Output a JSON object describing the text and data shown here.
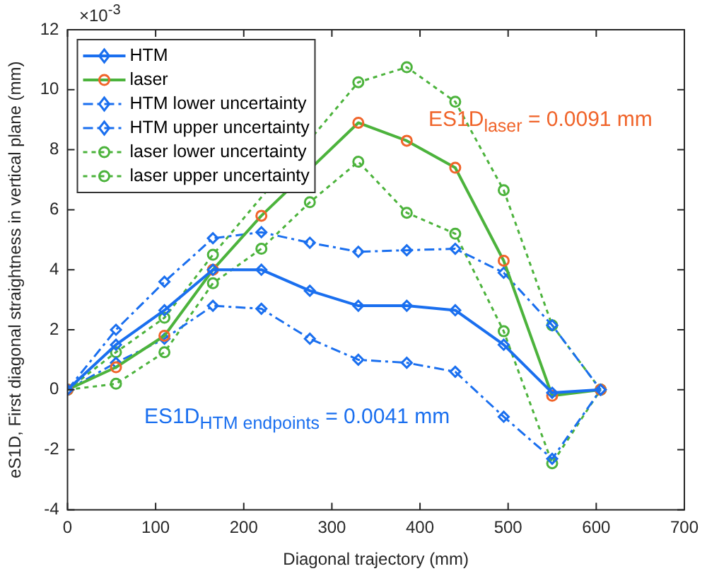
{
  "chart_data": {
    "type": "line",
    "xlabel": "Diagonal trajectory (mm)",
    "ylabel": "eS1D, First diagonal straightness in vertical plane (mm)",
    "x": [
      0,
      55,
      110,
      165,
      220,
      275,
      330,
      385,
      440,
      495,
      550,
      605
    ],
    "xlim": [
      0,
      700
    ],
    "xticks": [
      0,
      100,
      200,
      300,
      400,
      500,
      600,
      700
    ],
    "ylim": [
      -4,
      12
    ],
    "yticks": [
      -4,
      -2,
      0,
      2,
      4,
      6,
      8,
      10,
      12
    ],
    "grid": false,
    "legend": "top left",
    "annotations": [
      "×10$^{-3}$",
      "ES1D$_{laser}$ = 0.0091 mm",
      "ES1D$_{HTM endpoints}$ = 0.0041 mm"
    ],
    "series": [
      {
        "name": "HTM",
        "color": "#1a6fef",
        "marker": "diamond",
        "line_style": "solid",
        "values": [
          0,
          1.5,
          2.65,
          4.0,
          4.0,
          3.3,
          2.8,
          2.8,
          2.65,
          1.5,
          -0.1,
          0
        ]
      },
      {
        "name": "laser",
        "color": "#4cb33c",
        "colors": [
          "#f0642a",
          "#f0642a",
          "#f0642a",
          "#f0642a",
          "#f0642a",
          "#f0642a",
          "#f0642a",
          "#f0642a",
          "#f0642a",
          "#f0642a",
          "#f0642a",
          "#f0642a"
        ],
        "marker": "circle",
        "line_style": "solid",
        "values": [
          0,
          0.75,
          1.8,
          4.0,
          5.8,
          null,
          8.9,
          8.3,
          7.4,
          4.3,
          -0.2,
          0
        ]
      },
      {
        "name": "HTM lower uncertainty",
        "color": "#1a6fef",
        "marker": "diamond",
        "line_style": "dashed",
        "values": [
          0,
          0.9,
          1.7,
          2.8,
          2.7,
          1.7,
          1.0,
          0.9,
          0.6,
          -0.9,
          -2.3,
          0
        ]
      },
      {
        "name": "HTM upper uncertainty",
        "color": "#1a6fef",
        "marker": "diamond",
        "line_style": "dashed",
        "values": [
          0,
          2.0,
          3.6,
          5.05,
          5.25,
          4.9,
          4.6,
          4.65,
          4.7,
          3.9,
          2.15,
          0
        ]
      },
      {
        "name": "laser lower uncertainty",
        "color": "#4cb33c",
        "marker": "circle",
        "line_style": "dotted",
        "values": [
          0,
          0.2,
          1.25,
          3.55,
          4.7,
          6.25,
          7.6,
          5.9,
          5.2,
          1.95,
          -2.45,
          0
        ]
      },
      {
        "name": "laser upper uncertainty",
        "color": "#4cb33c",
        "marker": "circle",
        "line_style": "dotted",
        "values": [
          0,
          1.25,
          2.4,
          4.5,
          null,
          null,
          10.25,
          10.75,
          9.6,
          6.65,
          2.15,
          0
        ]
      }
    ]
  }
}
